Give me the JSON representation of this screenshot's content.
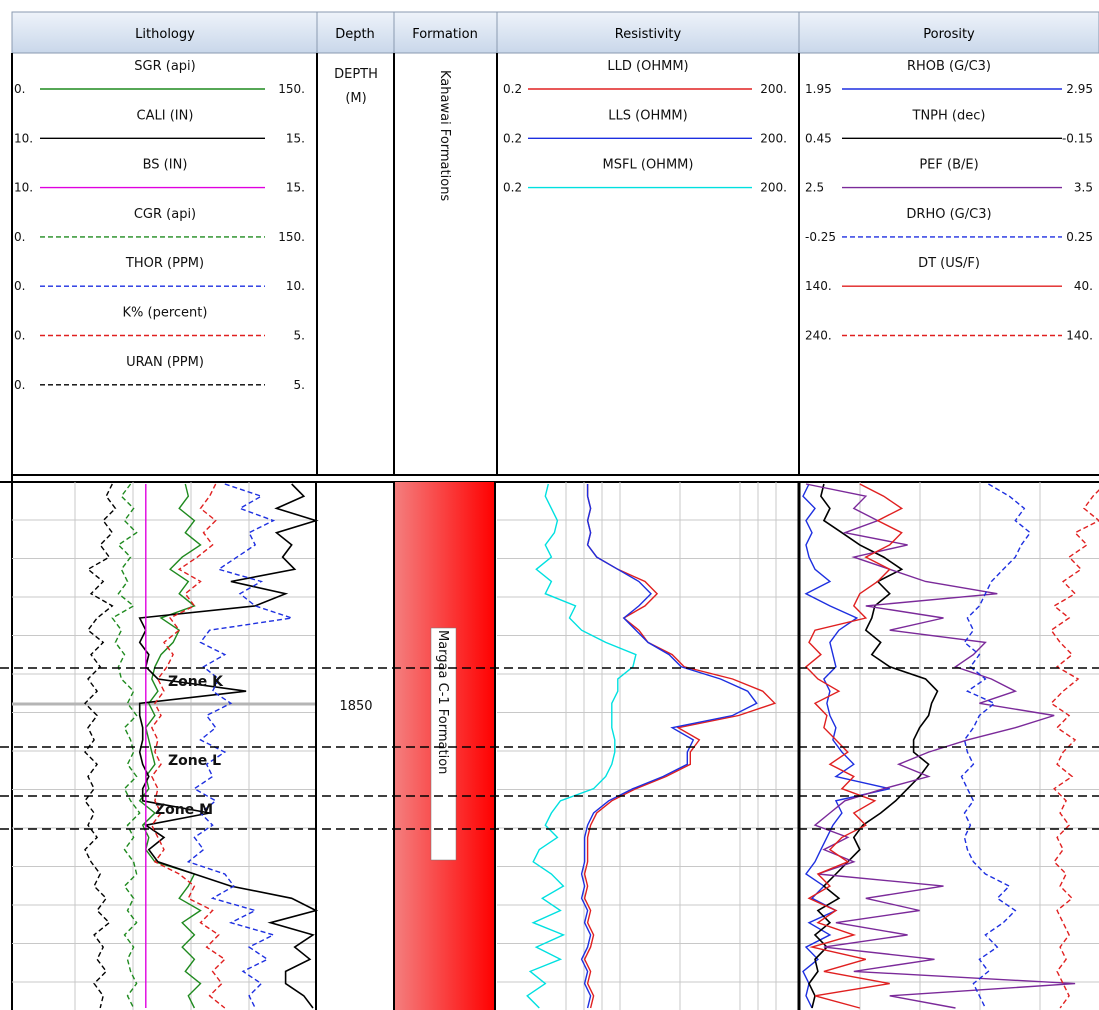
{
  "window": {
    "background": "#ffffff"
  },
  "tracks": [
    {
      "id": "lithology",
      "title": "Lithology"
    },
    {
      "id": "depth",
      "title": "Depth"
    },
    {
      "id": "formation",
      "title": "Formation"
    },
    {
      "id": "resistivity",
      "title": "Resistivity"
    },
    {
      "id": "porosity",
      "title": "Porosity"
    }
  ],
  "depth": {
    "mnemonic": "DEPTH",
    "unit": "(M)",
    "tick_label": "1850"
  },
  "formation": {
    "header_label": "Kahawai Formations",
    "zone_label": "Margaa C-1 Formation"
  },
  "curves": {
    "lithology": [
      {
        "name": "SGR (api)",
        "left": "0.",
        "right": "150.",
        "color": "#1f8a1f",
        "dash": false
      },
      {
        "name": "CALI (IN)",
        "left": "10.",
        "right": "15.",
        "color": "#000000",
        "dash": false
      },
      {
        "name": "BS (IN)",
        "left": "10.",
        "right": "15.",
        "color": "#e000e0",
        "dash": false
      },
      {
        "name": "CGR (api)",
        "left": "0.",
        "right": "150.",
        "color": "#1f8a1f",
        "dash": true
      },
      {
        "name": "THOR (PPM)",
        "left": "0.",
        "right": "10.",
        "color": "#1d2fe0",
        "dash": true
      },
      {
        "name": "K% (percent)",
        "left": "0.",
        "right": "5.",
        "color": "#e02020",
        "dash": true
      },
      {
        "name": "URAN (PPM)",
        "left": "0.",
        "right": "5.",
        "color": "#000000",
        "dash": true
      }
    ],
    "resistivity": [
      {
        "name": "LLD (OHMM)",
        "left": "0.2",
        "right": "200.",
        "color": "#e02020",
        "dash": false
      },
      {
        "name": "LLS (OHMM)",
        "left": "0.2",
        "right": "200.",
        "color": "#1d2fe0",
        "dash": false
      },
      {
        "name": "MSFL (OHMM)",
        "left": "0.2",
        "right": "200.",
        "color": "#00e0e0",
        "dash": false
      }
    ],
    "porosity": [
      {
        "name": "RHOB (G/C3)",
        "left": "1.95",
        "right": "2.95",
        "color": "#1d2fe0",
        "dash": false
      },
      {
        "name": "TNPH (dec)",
        "left": "0.45",
        "right": "-0.15",
        "color": "#000000",
        "dash": false
      },
      {
        "name": "PEF (B/E)",
        "left": "2.5",
        "right": "3.5",
        "color": "#7b2a9a",
        "dash": false
      },
      {
        "name": "DRHO (G/C3)",
        "left": "-0.25",
        "right": "0.25",
        "color": "#1d2fe0",
        "dash": true
      },
      {
        "name": "DT (US/F)",
        "left": "140.",
        "right": "40.",
        "color": "#e02020",
        "dash": false
      },
      {
        "name": "",
        "left": "240.",
        "right": "140.",
        "color": "#e02020",
        "dash": true
      }
    ]
  },
  "zones": [
    {
      "label": "Zone K"
    },
    {
      "label": "Zone L"
    },
    {
      "label": "Zone M"
    }
  ],
  "chart_data": {
    "type": "line",
    "depth_axis": {
      "label": "DEPTH",
      "unit": "(M)",
      "ticks": [
        1850
      ]
    },
    "series": [
      {
        "name": "SGR (api)",
        "track": "Lithology",
        "color": "#1f8a1f",
        "values": [
          0.57,
          0.58,
          0.55,
          0.6,
          0.57,
          0.62,
          0.56,
          0.52,
          0.58,
          0.55,
          0.6,
          0.49,
          0.55,
          0.53,
          0.49,
          0.47,
          0.46,
          0.48,
          0.45,
          0.47,
          0.44,
          0.45,
          0.46,
          0.47,
          0.44,
          0.45,
          0.42,
          0.47,
          0.43,
          0.45,
          0.44,
          0.47,
          0.6,
          0.58,
          0.55,
          0.62,
          0.56,
          0.6,
          0.56,
          0.6,
          0.57,
          0.62,
          0.58,
          0.6
        ]
      },
      {
        "name": "CALI (IN)",
        "track": "Lithology",
        "color": "#000000",
        "values": [
          0.92,
          0.96,
          0.87,
          1.0,
          0.87,
          0.92,
          0.89,
          0.93,
          0.72,
          0.9,
          0.8,
          0.42,
          0.44,
          0.42,
          0.45,
          0.44,
          0.48,
          0.77,
          0.42,
          0.42,
          0.43,
          0.43,
          0.42,
          0.43,
          0.45,
          0.43,
          0.43,
          0.65,
          0.44,
          0.5,
          0.45,
          0.48,
          0.6,
          0.72,
          0.92,
          1.0,
          0.85,
          0.99,
          0.93,
          0.98,
          0.9,
          0.9,
          0.96,
          0.99
        ]
      },
      {
        "name": "BS (IN)",
        "track": "Lithology",
        "color": "#e000e0",
        "values": [
          0.44,
          0.44,
          0.44,
          0.44,
          0.44,
          0.44,
          0.44,
          0.44,
          0.44,
          0.44,
          0.44,
          0.44,
          0.44,
          0.44,
          0.44,
          0.44,
          0.44,
          0.44,
          0.44,
          0.44,
          0.44,
          0.44,
          0.44,
          0.44,
          0.44,
          0.44,
          0.44,
          0.44,
          0.44,
          0.44,
          0.44,
          0.44,
          0.44,
          0.44,
          0.44,
          0.44,
          0.44,
          0.44,
          0.44,
          0.44,
          0.44,
          0.44,
          0.44,
          0.44
        ]
      },
      {
        "name": "CGR (api)",
        "track": "Lithology",
        "color": "#1f8a1f",
        "values": [
          0.39,
          0.36,
          0.4,
          0.37,
          0.41,
          0.35,
          0.39,
          0.36,
          0.38,
          0.35,
          0.4,
          0.33,
          0.36,
          0.34,
          0.37,
          0.35,
          0.36,
          0.4,
          0.38,
          0.41,
          0.37,
          0.39,
          0.4,
          0.38,
          0.41,
          0.37,
          0.39,
          0.42,
          0.38,
          0.4,
          0.37,
          0.4,
          0.41,
          0.37,
          0.4,
          0.38,
          0.41,
          0.37,
          0.4,
          0.38,
          0.39,
          0.41,
          0.38,
          0.4
        ]
      },
      {
        "name": "THOR (PPM)",
        "track": "Lithology",
        "color": "#1d2fe0",
        "values": [
          0.7,
          0.82,
          0.75,
          0.86,
          0.78,
          0.8,
          0.74,
          0.68,
          0.82,
          0.75,
          0.8,
          0.92,
          0.65,
          0.62,
          0.7,
          0.63,
          0.68,
          0.66,
          0.72,
          0.64,
          0.67,
          0.62,
          0.7,
          0.64,
          0.66,
          0.6,
          0.67,
          0.62,
          0.66,
          0.6,
          0.63,
          0.58,
          0.7,
          0.73,
          0.66,
          0.8,
          0.72,
          0.86,
          0.78,
          0.84,
          0.76,
          0.82,
          0.78,
          0.8
        ]
      },
      {
        "name": "K% (percent)",
        "track": "Lithology",
        "color": "#e02020",
        "values": [
          0.67,
          0.65,
          0.62,
          0.67,
          0.63,
          0.66,
          0.61,
          0.55,
          0.62,
          0.57,
          0.6,
          0.52,
          0.55,
          0.5,
          0.53,
          0.51,
          0.48,
          0.5,
          0.47,
          0.49,
          0.46,
          0.48,
          0.47,
          0.49,
          0.46,
          0.48,
          0.47,
          0.49,
          0.46,
          0.48,
          0.5,
          0.47,
          0.55,
          0.6,
          0.58,
          0.66,
          0.62,
          0.68,
          0.64,
          0.7,
          0.66,
          0.69,
          0.65,
          0.7
        ]
      },
      {
        "name": "URAN (PPM)",
        "track": "Lithology",
        "color": "#000000",
        "values": [
          0.33,
          0.31,
          0.34,
          0.3,
          0.33,
          0.29,
          0.32,
          0.25,
          0.3,
          0.26,
          0.33,
          0.28,
          0.25,
          0.3,
          0.26,
          0.29,
          0.25,
          0.28,
          0.24,
          0.28,
          0.25,
          0.27,
          0.24,
          0.28,
          0.25,
          0.27,
          0.24,
          0.27,
          0.25,
          0.28,
          0.24,
          0.26,
          0.29,
          0.27,
          0.31,
          0.28,
          0.32,
          0.27,
          0.3,
          0.28,
          0.31,
          0.27,
          0.3,
          0.29
        ]
      },
      {
        "name": "LLD (OHMM)",
        "track": "Resistivity",
        "color": "#e02020",
        "values": [
          0.3,
          0.3,
          0.31,
          0.3,
          0.31,
          0.3,
          0.33,
          0.4,
          0.49,
          0.53,
          0.49,
          0.42,
          0.47,
          0.5,
          0.58,
          0.62,
          0.78,
          0.88,
          0.92,
          0.8,
          0.6,
          0.67,
          0.64,
          0.64,
          0.56,
          0.46,
          0.38,
          0.33,
          0.31,
          0.3,
          0.3,
          0.3,
          0.29,
          0.3,
          0.29,
          0.31,
          0.3,
          0.32,
          0.31,
          0.29,
          0.31,
          0.3,
          0.32,
          0.31
        ]
      },
      {
        "name": "LLS (OHMM)",
        "track": "Resistivity",
        "color": "#1d2fe0",
        "values": [
          0.3,
          0.3,
          0.31,
          0.3,
          0.31,
          0.3,
          0.33,
          0.4,
          0.47,
          0.51,
          0.47,
          0.42,
          0.46,
          0.5,
          0.57,
          0.61,
          0.74,
          0.83,
          0.86,
          0.78,
          0.58,
          0.65,
          0.63,
          0.63,
          0.55,
          0.45,
          0.37,
          0.32,
          0.3,
          0.29,
          0.29,
          0.29,
          0.28,
          0.29,
          0.28,
          0.3,
          0.29,
          0.31,
          0.3,
          0.28,
          0.3,
          0.29,
          0.31,
          0.3
        ]
      },
      {
        "name": "MSFL (OHMM)",
        "track": "Resistivity",
        "color": "#00e0e0",
        "values": [
          0.17,
          0.16,
          0.18,
          0.2,
          0.19,
          0.16,
          0.18,
          0.13,
          0.18,
          0.16,
          0.26,
          0.24,
          0.28,
          0.36,
          0.46,
          0.45,
          0.4,
          0.4,
          0.38,
          0.38,
          0.38,
          0.39,
          0.39,
          0.38,
          0.36,
          0.32,
          0.21,
          0.18,
          0.16,
          0.2,
          0.14,
          0.12,
          0.18,
          0.22,
          0.15,
          0.21,
          0.12,
          0.22,
          0.13,
          0.21,
          0.11,
          0.16,
          0.1,
          0.14
        ]
      },
      {
        "name": "RHOB (G/C3)",
        "track": "Porosity",
        "color": "#1d2fe0",
        "values": [
          0.03,
          0.01,
          0.05,
          0.02,
          0.04,
          0.02,
          0.03,
          0.05,
          0.1,
          0.02,
          0.1,
          0.19,
          0.13,
          0.1,
          0.11,
          0.12,
          0.08,
          0.1,
          0.09,
          0.1,
          0.12,
          0.11,
          0.14,
          0.18,
          0.12,
          0.3,
          0.12,
          0.14,
          0.11,
          0.09,
          0.07,
          0.05,
          0.02,
          0.08,
          0.04,
          0.12,
          0.03,
          0.1,
          0.02,
          0.06,
          0.01,
          0.03,
          0.02,
          0.04
        ]
      },
      {
        "name": "TNPH (dec)",
        "track": "Porosity",
        "color": "#000000",
        "values": [
          0.08,
          0.07,
          0.1,
          0.08,
          0.14,
          0.2,
          0.28,
          0.34,
          0.26,
          0.3,
          0.25,
          0.24,
          0.22,
          0.27,
          0.24,
          0.3,
          0.42,
          0.46,
          0.44,
          0.43,
          0.4,
          0.38,
          0.38,
          0.43,
          0.4,
          0.36,
          0.32,
          0.27,
          0.21,
          0.18,
          0.2,
          0.16,
          0.12,
          0.08,
          0.13,
          0.06,
          0.1,
          0.05,
          0.09,
          0.05,
          0.06,
          0.03,
          0.05,
          0.04
        ]
      },
      {
        "name": "PEF (B/E)",
        "track": "Porosity",
        "color": "#7b2a9a",
        "values": [
          0.02,
          0.22,
          0.18,
          0.26,
          0.15,
          0.36,
          0.18,
          0.3,
          0.42,
          0.66,
          0.22,
          0.48,
          0.3,
          0.62,
          0.58,
          0.52,
          0.64,
          0.72,
          0.6,
          0.85,
          0.72,
          0.56,
          0.43,
          0.33,
          0.43,
          0.28,
          0.15,
          0.1,
          0.05,
          0.16,
          0.08,
          0.18,
          0.06,
          0.48,
          0.22,
          0.4,
          0.12,
          0.36,
          0.08,
          0.45,
          0.18,
          0.92,
          0.3,
          0.52
        ]
      },
      {
        "name": "DRHO (G/C3)",
        "track": "Porosity",
        "color": "#1d2fe0",
        "values": [
          0.63,
          0.7,
          0.75,
          0.72,
          0.77,
          0.74,
          0.72,
          0.68,
          0.64,
          0.62,
          0.6,
          0.56,
          0.58,
          0.55,
          0.6,
          0.57,
          0.62,
          0.56,
          0.65,
          0.6,
          0.58,
          0.55,
          0.56,
          0.58,
          0.54,
          0.56,
          0.58,
          0.55,
          0.57,
          0.55,
          0.56,
          0.58,
          0.62,
          0.7,
          0.66,
          0.72,
          0.68,
          0.62,
          0.66,
          0.6,
          0.63,
          0.58,
          0.6,
          0.62
        ]
      },
      {
        "name": "DT (US/F)",
        "track": "Porosity",
        "color": "#e02020",
        "values": [
          0.2,
          0.28,
          0.34,
          0.26,
          0.34,
          0.3,
          0.22,
          0.3,
          0.26,
          0.2,
          0.18,
          0.22,
          0.05,
          0.03,
          0.07,
          0.02,
          0.06,
          0.13,
          0.05,
          0.09,
          0.08,
          0.12,
          0.16,
          0.1,
          0.18,
          0.14,
          0.25,
          0.18,
          0.22,
          0.14,
          0.1,
          0.16,
          0.06,
          0.1,
          0.03,
          0.12,
          0.06,
          0.18,
          0.04,
          0.22,
          0.08,
          0.3,
          0.05,
          0.2
        ]
      },
      {
        "name": "",
        "track": "Porosity",
        "color": "#e02020",
        "values": [
          1.02,
          0.98,
          0.95,
          1.0,
          0.92,
          0.96,
          0.9,
          0.94,
          0.88,
          0.92,
          0.85,
          0.9,
          0.84,
          0.87,
          0.91,
          0.86,
          0.93,
          0.88,
          0.84,
          0.9,
          0.86,
          0.92,
          0.88,
          0.86,
          0.91,
          0.85,
          0.89,
          0.87,
          0.9,
          0.86,
          0.88,
          0.85,
          0.89,
          0.87,
          0.91,
          0.86,
          0.88,
          0.9,
          0.87,
          0.89,
          0.86,
          0.88,
          0.9,
          0.87
        ]
      }
    ]
  }
}
